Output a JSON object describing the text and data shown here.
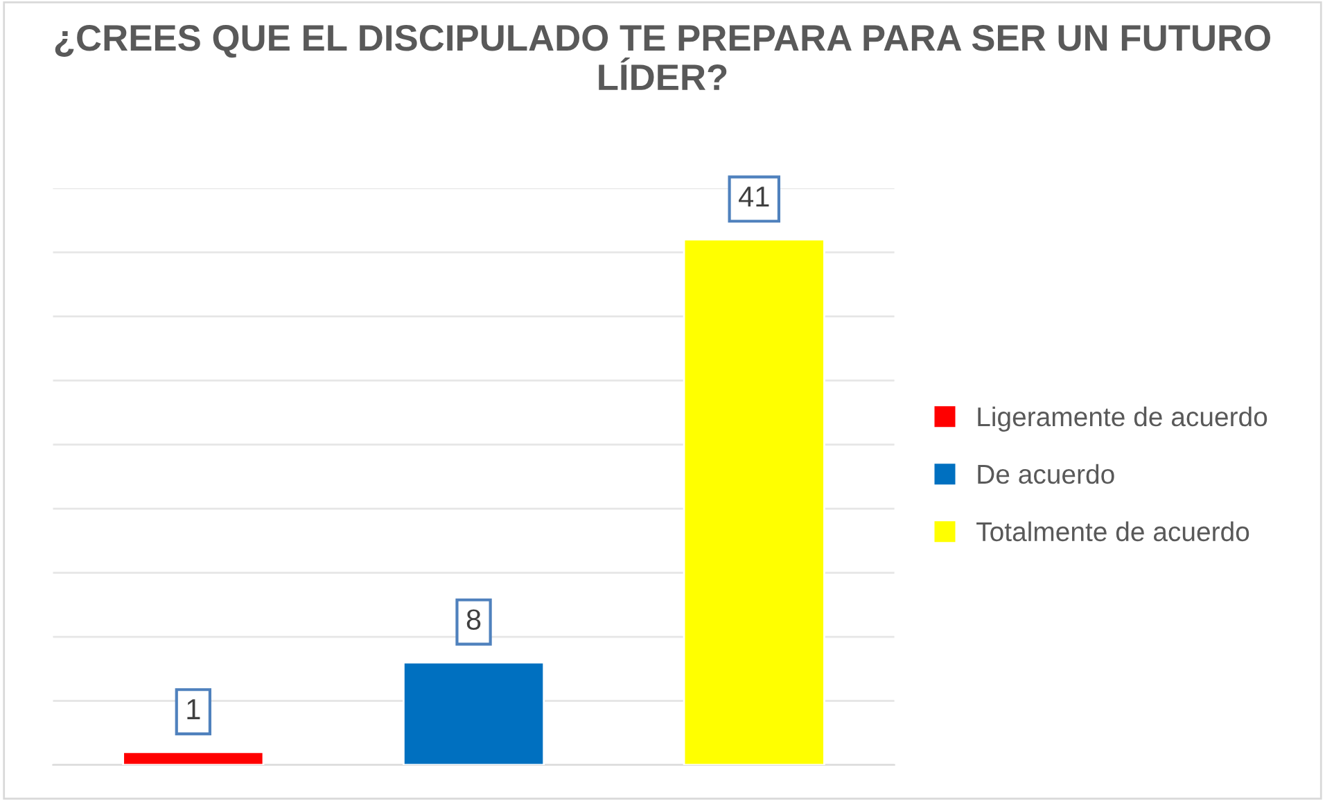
{
  "chart_data": {
    "type": "bar",
    "title": "¿CREES QUE EL DISCIPULADO TE PREPARA PARA SER UN FUTURO LÍDER?",
    "categories": [
      null,
      null,
      null
    ],
    "stacked": true,
    "series": [
      {
        "name": "Ligeramente de acuerdo",
        "color": "#ff0000",
        "values": [
          1,
          null,
          null
        ]
      },
      {
        "name": "De acuerdo",
        "color": "#0070c0",
        "values": [
          null,
          8,
          null
        ]
      },
      {
        "name": "Totalmente de acuerdo",
        "color": "#ffff00",
        "values": [
          null,
          null,
          41
        ]
      }
    ],
    "ylim": [
      0,
      45
    ],
    "yticks": [
      {
        "value": 0,
        "label": null
      },
      {
        "value": 5,
        "label": null
      },
      {
        "value": 10,
        "label": null
      },
      {
        "value": 15,
        "label": null
      },
      {
        "value": 20,
        "label": null
      },
      {
        "value": 25,
        "label": null
      },
      {
        "value": 30,
        "label": null
      },
      {
        "value": 35,
        "label": null
      },
      {
        "value": 40,
        "label": null
      },
      {
        "value": 45,
        "label": null
      }
    ],
    "grid": "y",
    "legend": "right",
    "data_labels": true
  }
}
